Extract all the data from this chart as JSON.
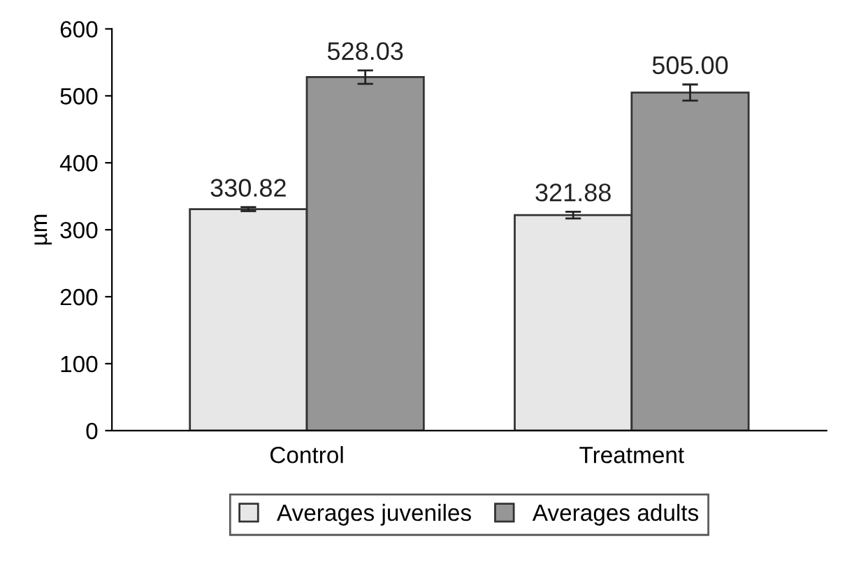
{
  "chart_data": {
    "type": "bar",
    "ylabel": "µm",
    "categories": [
      "Control",
      "Treatment"
    ],
    "series": [
      {
        "name": "Averages juveniles",
        "color": "#e6e7e6",
        "values": [
          330.82,
          321.88
        ],
        "errors": [
          3,
          5
        ]
      },
      {
        "name": "Averages adults",
        "color": "#969696",
        "values": [
          528.03,
          505.0
        ],
        "errors": [
          10,
          12
        ],
        "value_labels": [
          "528.03",
          "505.00"
        ]
      }
    ],
    "ylim": [
      0,
      600
    ],
    "yticks": [
      0,
      100,
      200,
      300,
      400,
      500,
      600
    ],
    "grid": false,
    "legend": "bottom",
    "data_labels": true
  }
}
